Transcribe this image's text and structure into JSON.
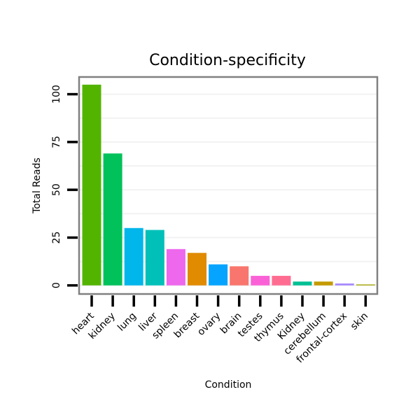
{
  "chart_data": {
    "type": "bar",
    "title": "Condition-specificity",
    "xlabel": "Condition",
    "ylabel": "Total Reads",
    "ylim": [
      -4.5,
      109
    ],
    "yticks": [
      0,
      25,
      50,
      75,
      100
    ],
    "grid": true,
    "legend": "none",
    "categories": [
      "heart",
      "kidney",
      "lung",
      "liver",
      "spleen",
      "breast",
      "ovary",
      "brain",
      "testes",
      "thymus",
      "Kidney",
      "cerebellum",
      "frontal-cortex",
      "skin"
    ],
    "values": [
      105,
      69,
      30,
      29,
      19,
      17,
      11,
      10,
      5,
      5,
      2,
      2,
      1,
      0.5
    ],
    "colors": [
      "#53b400",
      "#00c15a",
      "#00b6eb",
      "#00c0b8",
      "#ed68ed",
      "#e08b00",
      "#06a4ff",
      "#f8766d",
      "#fb61d7",
      "#ff6c91",
      "#00c094",
      "#c49a00",
      "#a58aff",
      "#a3a500"
    ]
  }
}
